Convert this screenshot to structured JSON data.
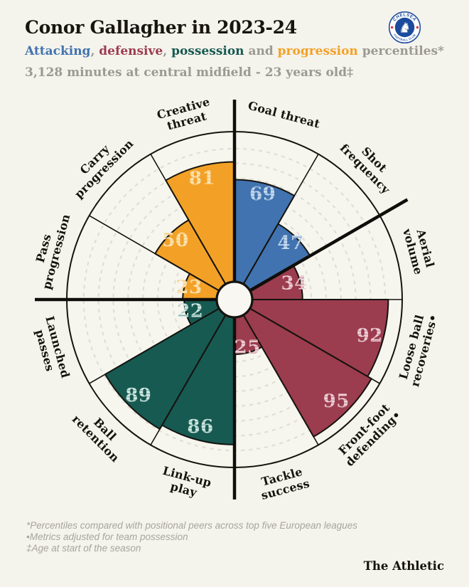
{
  "page": {
    "background": "#f4f3ec",
    "ink": "#15130e",
    "muted_gray": "#9b9a92"
  },
  "header": {
    "title": "Conor Gallagher in 2023-24",
    "subtitle_segments": [
      {
        "text": "Attacking",
        "category": "attacking"
      },
      {
        "text": ", ",
        "category": null
      },
      {
        "text": "defensive",
        "category": "defensive"
      },
      {
        "text": ", ",
        "category": null
      },
      {
        "text": "possession",
        "category": "possession"
      },
      {
        "text": " and ",
        "category": null
      },
      {
        "text": "progression",
        "category": "progression"
      },
      {
        "text": " percentiles*",
        "category": null
      }
    ],
    "context_line": "3,128 minutes at central midfield - 23 years old‡",
    "club_badge": {
      "name": "Chelsea FC",
      "top_text": "CHELSEA",
      "bottom_text": "FOOTBALL CLUB",
      "lion_glyph": "♞",
      "blue": "#1c4b9d",
      "red": "#d6373d"
    }
  },
  "chart_data": {
    "type": "pie",
    "subtype": "pizza-percentile-chart",
    "unit": "percentile",
    "value_range": [
      0,
      100
    ],
    "slice_angle_deg": 30,
    "start_at_top_clockwise": true,
    "gridline_step": 10,
    "grid_on": true,
    "category_divider_angles": [
      0,
      60,
      180,
      270
    ],
    "categories": {
      "attacking": {
        "label": "Attacking",
        "color": "#4173b0",
        "value_color": "#c6d9ee",
        "value_stripe": "#7ba1cc"
      },
      "defensive": {
        "label": "defensive",
        "color": "#9c3c4f",
        "value_color": "#edd0d7",
        "value_stripe": "#c2848f"
      },
      "possession": {
        "label": "possession",
        "color": "#175a52",
        "value_color": "#d0e8e1",
        "value_stripe": "#6fa098"
      },
      "progression": {
        "label": "progression",
        "color": "#f3a126",
        "value_color": "#fbe4b6",
        "value_stripe": "#f7c26b"
      }
    },
    "slices": [
      {
        "metric": "Goal threat",
        "lines": [
          "Goal threat"
        ],
        "value": 69,
        "category": "attacking"
      },
      {
        "metric": "Shot frequency",
        "lines": [
          "Shot",
          "frequency"
        ],
        "value": 47,
        "category": "attacking"
      },
      {
        "metric": "Aerial volume",
        "lines": [
          "Aerial",
          "volume"
        ],
        "value": 34,
        "category": "defensive"
      },
      {
        "metric": "Loose ball recoveries•",
        "lines": [
          "Loose ball",
          "recoveries•"
        ],
        "value": 92,
        "category": "defensive"
      },
      {
        "metric": "Front-foot defending•",
        "lines": [
          "Front-foot",
          "defending•"
        ],
        "value": 95,
        "category": "defensive"
      },
      {
        "metric": "Tackle success",
        "lines": [
          "Tackle",
          "success"
        ],
        "value": 25,
        "category": "defensive"
      },
      {
        "metric": "Link-up play",
        "lines": [
          "Link-up",
          "play"
        ],
        "value": 86,
        "category": "possession"
      },
      {
        "metric": "Ball retention",
        "lines": [
          "Ball",
          "retention"
        ],
        "value": 89,
        "category": "possession"
      },
      {
        "metric": "Launched passes",
        "lines": [
          "Launched",
          "passes"
        ],
        "value": 22,
        "category": "possession"
      },
      {
        "metric": "Pass progression",
        "lines": [
          "Pass",
          "progression"
        ],
        "value": 23,
        "category": "progression"
      },
      {
        "metric": "Carry progression",
        "lines": [
          "Carry",
          "progression"
        ],
        "value": 50,
        "category": "progression"
      },
      {
        "metric": "Creative threat",
        "lines": [
          "Creative",
          "threat"
        ],
        "value": 81,
        "category": "progression"
      }
    ],
    "layout": {
      "center": [
        330,
        421
      ],
      "inner_radius": 25,
      "max_value_radius": 233,
      "outer_radius": 236,
      "label_radius": 268,
      "divider_overhang_radius": 281,
      "gridline_color": "#deddd3",
      "disc_color": "#f6f5ee",
      "hole_color": "#f8f7f1"
    }
  },
  "footer": {
    "notes": [
      "*Percentiles compared with positional peers across top five European leagues",
      "•Metrics adjusted for team possession",
      "‡Age at start of the season"
    ],
    "brand": "The Athletic"
  }
}
